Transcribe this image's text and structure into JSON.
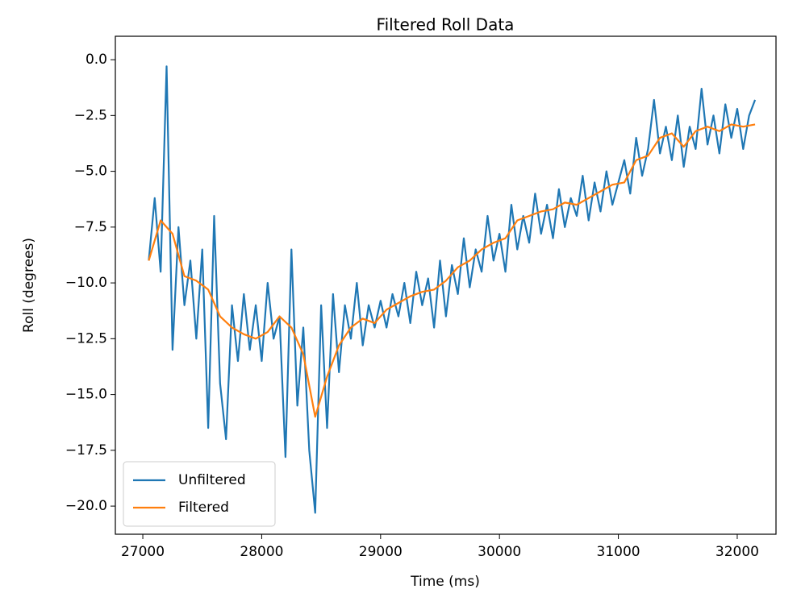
{
  "chart_data": {
    "type": "line",
    "title": "Filtered Roll Data",
    "x_label": "Time (ms)",
    "y_label": "Roll (degrees)",
    "series": [
      {
        "name": "Unfiltered",
        "color": "#1f77b4",
        "x": [
          27050,
          27100,
          27150,
          27200,
          27250,
          27300,
          27350,
          27400,
          27450,
          27500,
          27550,
          27600,
          27650,
          27700,
          27750,
          27800,
          27850,
          27900,
          27950,
          28000,
          28050,
          28100,
          28150,
          28200,
          28250,
          28300,
          28350,
          28400,
          28450,
          28500,
          28550,
          28600,
          28650,
          28700,
          28750,
          28800,
          28850,
          28900,
          28950,
          29000,
          29050,
          29100,
          29150,
          29200,
          29250,
          29300,
          29350,
          29400,
          29450,
          29500,
          29550,
          29600,
          29650,
          29700,
          29750,
          29800,
          29850,
          29900,
          29950,
          30000,
          30050,
          30100,
          30150,
          30200,
          30250,
          30300,
          30350,
          30400,
          30450,
          30500,
          30550,
          30600,
          30650,
          30700,
          30750,
          30800,
          30850,
          30900,
          30950,
          31000,
          31050,
          31100,
          31150,
          31200,
          31250,
          31300,
          31350,
          31400,
          31450,
          31500,
          31550,
          31600,
          31650,
          31700,
          31750,
          31800,
          31850,
          31900,
          31950,
          32000,
          32050,
          32100,
          32150
        ],
        "values": [
          -9.0,
          -6.2,
          -9.5,
          -0.3,
          -13.0,
          -7.5,
          -11.0,
          -9.0,
          -12.5,
          -8.5,
          -16.5,
          -7.0,
          -14.5,
          -17.0,
          -11.0,
          -13.5,
          -10.5,
          -13.0,
          -11.0,
          -13.5,
          -10.0,
          -12.5,
          -11.5,
          -17.8,
          -8.5,
          -15.5,
          -12.0,
          -17.5,
          -20.3,
          -11.0,
          -16.5,
          -10.5,
          -14.0,
          -11.0,
          -12.5,
          -10.0,
          -12.8,
          -11.0,
          -12.0,
          -10.8,
          -12.0,
          -10.5,
          -11.5,
          -10.0,
          -11.8,
          -9.5,
          -11.0,
          -9.8,
          -12.0,
          -9.0,
          -11.5,
          -9.2,
          -10.5,
          -8.0,
          -10.2,
          -8.5,
          -9.5,
          -7.0,
          -9.0,
          -7.8,
          -9.5,
          -6.5,
          -8.5,
          -7.0,
          -8.2,
          -6.0,
          -7.8,
          -6.5,
          -8.0,
          -5.8,
          -7.5,
          -6.2,
          -7.0,
          -5.2,
          -7.2,
          -5.5,
          -6.8,
          -5.0,
          -6.5,
          -5.5,
          -4.5,
          -6.0,
          -3.5,
          -5.2,
          -4.0,
          -1.8,
          -4.2,
          -3.0,
          -4.5,
          -2.5,
          -4.8,
          -3.0,
          -4.0,
          -1.3,
          -3.8,
          -2.5,
          -4.2,
          -2.0,
          -3.5,
          -2.2,
          -4.0,
          -2.5,
          -1.8
        ]
      },
      {
        "name": "Filtered",
        "color": "#ff7f0e",
        "x": [
          27050,
          27150,
          27250,
          27350,
          27450,
          27550,
          27650,
          27750,
          27850,
          27950,
          28050,
          28150,
          28250,
          28350,
          28450,
          28550,
          28650,
          28750,
          28850,
          28950,
          29050,
          29150,
          29250,
          29350,
          29450,
          29550,
          29650,
          29750,
          29850,
          29950,
          30050,
          30150,
          30250,
          30350,
          30450,
          30550,
          30650,
          30750,
          30850,
          30950,
          31050,
          31150,
          31250,
          31350,
          31450,
          31550,
          31650,
          31750,
          31850,
          31950,
          32050,
          32150
        ],
        "values": [
          -9.0,
          -7.2,
          -7.8,
          -9.7,
          -9.9,
          -10.3,
          -11.5,
          -12.0,
          -12.3,
          -12.5,
          -12.2,
          -11.5,
          -12.0,
          -13.2,
          -16.0,
          -14.2,
          -12.8,
          -12.0,
          -11.6,
          -11.8,
          -11.2,
          -10.9,
          -10.6,
          -10.4,
          -10.3,
          -9.9,
          -9.3,
          -9.0,
          -8.5,
          -8.2,
          -8.0,
          -7.2,
          -7.0,
          -6.8,
          -6.7,
          -6.4,
          -6.5,
          -6.2,
          -5.9,
          -5.6,
          -5.5,
          -4.5,
          -4.3,
          -3.5,
          -3.3,
          -3.9,
          -3.2,
          -3.0,
          -3.2,
          -2.9,
          -3.0,
          -2.9
        ]
      }
    ],
    "xlim": [
      26769,
      32326
    ],
    "ylim": [
      -21.26,
      1.05
    ],
    "xticks": [
      27000,
      28000,
      29000,
      30000,
      31000,
      32000
    ],
    "yticks": [
      {
        "value": 0,
        "label": "0.0"
      },
      {
        "value": -2.5,
        "label": "−2.5"
      },
      {
        "value": -5,
        "label": "−5.0"
      },
      {
        "value": -7.5,
        "label": "−7.5"
      },
      {
        "value": -10,
        "label": "−10.0"
      },
      {
        "value": -12.5,
        "label": "−12.5"
      },
      {
        "value": -15,
        "label": "−15.0"
      },
      {
        "value": -17.5,
        "label": "−17.5"
      },
      {
        "value": -20,
        "label": "−20.0"
      }
    ],
    "grid": false,
    "legend": "lower left"
  }
}
